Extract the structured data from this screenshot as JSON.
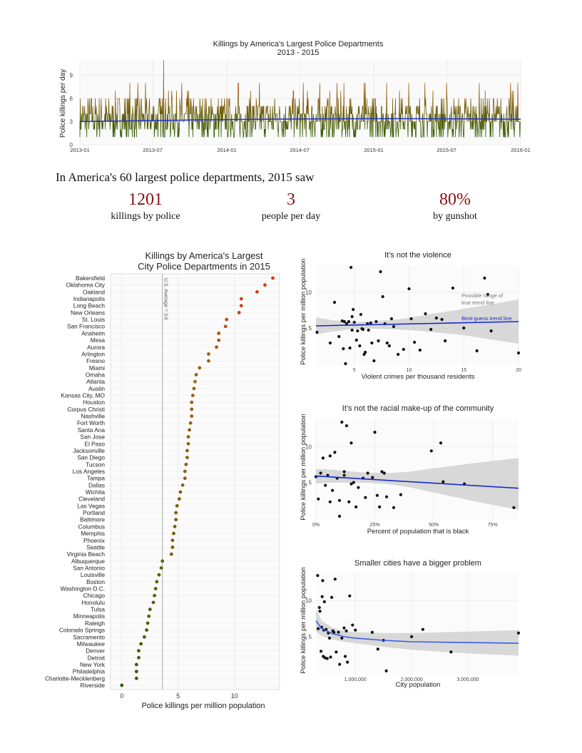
{
  "headline": "In America's 60 largest police departments, 2015 saw",
  "stats": [
    {
      "value": "1201",
      "label": "killings by police"
    },
    {
      "value": "3",
      "label": "people per day"
    },
    {
      "value": "80%",
      "label": "by gunshot"
    }
  ],
  "colors": {
    "trend": "#2233cc",
    "high": "#e8401c",
    "mid": "#a06010",
    "low": "#2a5a00",
    "band": "#cfcfcf",
    "ref_line": "#aaaaaa"
  },
  "chart_data": [
    {
      "type": "line",
      "title": "Killings by America's Largest Police Departments",
      "subtitle": "2013 - 2015",
      "ylabel": "Police killings per day",
      "xlabel": "",
      "x_ticks": [
        "2013-01",
        "2013-07",
        "2014-01",
        "2014-07",
        "2015-01",
        "2015-07",
        "2016-01"
      ],
      "y_ticks": [
        0,
        3,
        6,
        9
      ],
      "ylim": [
        0,
        11
      ],
      "xlim": [
        "2013-01-01",
        "2016-01-01"
      ],
      "grid": true,
      "series": [
        {
          "values_note": "",
          "peak_value": 11,
          "peak_date": "2013-07-28",
          "typical_range": [
            1,
            6
          ]
        }
      ],
      "trend": {
        "start": 3.0,
        "end": 3.3
      }
    },
    {
      "type": "scatter",
      "title": "Killings by America's Largest\nCity Police Departments in 2015",
      "xlabel": "Police killings per million population",
      "ylabel": "",
      "x_ticks": [
        0,
        5,
        10
      ],
      "xlim": [
        -1,
        14
      ],
      "reference_line": {
        "value": 3.6,
        "label": "U.S. Average = 3.6"
      },
      "categories": [
        "Bakersfield",
        "Oklahoma City",
        "Oakland",
        "Indianapolis",
        "Long Beach",
        "New Orleans",
        "St. Louis",
        "San Francisco",
        "Anaheim",
        "Mesa",
        "Aurora",
        "Arlington",
        "Fresno",
        "Miami",
        "Omaha",
        "Atlanta",
        "Austin",
        "Kansas City, MO",
        "Houston",
        "Corpus Christi",
        "Nashville",
        "Fort Worth",
        "Santa Ana",
        "San Jose",
        "El Paso",
        "Jacksonville",
        "San Diego",
        "Tucson",
        "Los Angeles",
        "Tampa",
        "Dallas",
        "Wichita",
        "Cleveland",
        "Las Vegas",
        "Portland",
        "Baltimore",
        "Columbus",
        "Memphis",
        "Phoenix",
        "Seattle",
        "Virginia Beach",
        "Albuquerque",
        "San Antonio",
        "Louisville",
        "Boston",
        "Washington D.C.",
        "Chicago",
        "Honolulu",
        "Tulsa",
        "Minneapolis",
        "Raleigh",
        "Colorado Springs",
        "Sacramento",
        "Milwaukee",
        "Denver",
        "Detroit",
        "New York",
        "Philadelphia",
        "Charlotte-Mecklenberg",
        "Riverside"
      ],
      "values": [
        13.4,
        12.7,
        12.0,
        10.6,
        10.6,
        10.4,
        9.3,
        9.2,
        8.6,
        8.6,
        8.4,
        7.7,
        7.7,
        6.9,
        6.6,
        6.5,
        6.4,
        6.3,
        6.2,
        6.2,
        6.2,
        6.1,
        6.0,
        5.9,
        5.9,
        5.8,
        5.8,
        5.7,
        5.6,
        5.6,
        5.4,
        5.2,
        5.1,
        4.9,
        4.8,
        4.8,
        4.7,
        4.6,
        4.5,
        4.5,
        4.4,
        3.6,
        3.5,
        3.3,
        3.1,
        3.0,
        2.9,
        2.8,
        2.5,
        2.4,
        2.3,
        2.2,
        2.0,
        1.7,
        1.5,
        1.5,
        1.3,
        1.3,
        1.3,
        0.0
      ]
    },
    {
      "type": "scatter",
      "title": "It's not the violence",
      "xlabel": "Violent crimes per thousand residents",
      "ylabel": "Police killings per million population",
      "x_ticks": [
        5,
        10,
        15,
        20
      ],
      "y_ticks": [
        5,
        10
      ],
      "xlim": [
        1.5,
        20
      ],
      "ylim": [
        -0.2,
        13.8
      ],
      "annotations": [
        "Possible range of true trend line",
        "Best-guess trend line"
      ],
      "trend": {
        "x": [
          1.5,
          20
        ],
        "y": [
          5.3,
          5.9
        ]
      },
      "band": {
        "x": [
          1.5,
          3,
          5,
          7,
          9,
          11,
          13,
          15,
          17,
          20
        ],
        "lo": [
          4.1,
          4.5,
          4.9,
          4.9,
          4.8,
          4.6,
          4.3,
          4.0,
          3.5,
          2.8
        ],
        "hi": [
          6.5,
          6.1,
          5.8,
          6.0,
          6.2,
          6.7,
          7.2,
          7.7,
          8.2,
          9.0
        ]
      },
      "x": [
        1.6,
        2.8,
        3.2,
        3.6,
        3.9,
        4.0,
        4.1,
        4.2,
        4.3,
        4.5,
        4.6,
        4.7,
        4.8,
        4.8,
        4.9,
        5.0,
        5.2,
        5.3,
        5.5,
        5.6,
        5.7,
        5.8,
        5.9,
        6.0,
        6.2,
        6.3,
        6.5,
        6.6,
        6.8,
        7.0,
        7.2,
        7.4,
        7.6,
        7.8,
        8.0,
        8.2,
        8.4,
        8.6,
        9.0,
        9.5,
        10.0,
        10.2,
        10.5,
        11.0,
        11.5,
        12.0,
        12.5,
        13.0,
        13.3,
        14.0,
        15.0,
        16.2,
        16.9,
        17.2,
        17.5,
        20.0
      ],
      "y": [
        4.4,
        2.9,
        8.6,
        3.8,
        6.0,
        2.1,
        5.9,
        0.0,
        5.6,
        5.9,
        2.2,
        13.5,
        6.6,
        4.7,
        7.6,
        5.8,
        3.3,
        4.6,
        2.5,
        6.9,
        4.9,
        4.8,
        1.3,
        1.6,
        5.6,
        4.7,
        5.7,
        2.9,
        0.4,
        5.9,
        3.2,
        12.9,
        9.4,
        5.6,
        2.9,
        2.5,
        6.3,
        5.2,
        1.3,
        2.0,
        10.5,
        6.3,
        3.0,
        1.9,
        7.0,
        4.8,
        6.4,
        6.2,
        3.2,
        10.6,
        5.0,
        1.8,
        12.0,
        9.7,
        4.6,
        1.5
      ]
    },
    {
      "type": "scatter",
      "title": "It's not the racial make-up of the community",
      "xlabel": "Percent of population that is black",
      "ylabel": "Police killings per million population",
      "x_ticks": [
        "0%",
        "25%",
        "50%",
        "75%"
      ],
      "y_ticks": [
        5,
        10
      ],
      "xlim": [
        0,
        0.86
      ],
      "ylim": [
        -0.2,
        13.8
      ],
      "trend": {
        "x": [
          0,
          0.86
        ],
        "y": [
          5.9,
          4.2
        ]
      },
      "band": {
        "x": [
          0,
          0.1,
          0.2,
          0.3,
          0.4,
          0.5,
          0.6,
          0.7,
          0.86
        ],
        "lo": [
          4.9,
          5.0,
          5.0,
          4.8,
          4.3,
          3.6,
          2.9,
          2.2,
          1.2
        ],
        "hi": [
          6.9,
          6.7,
          6.4,
          6.3,
          6.5,
          7.0,
          7.4,
          7.8,
          8.4
        ]
      },
      "x": [
        0.0,
        0.01,
        0.02,
        0.03,
        0.04,
        0.05,
        0.06,
        0.06,
        0.07,
        0.08,
        0.09,
        0.1,
        0.1,
        0.11,
        0.12,
        0.12,
        0.13,
        0.14,
        0.15,
        0.15,
        0.16,
        0.17,
        0.18,
        0.2,
        0.21,
        0.22,
        0.24,
        0.25,
        0.26,
        0.27,
        0.28,
        0.29,
        0.3,
        0.33,
        0.36,
        0.49,
        0.53,
        0.54,
        0.63,
        0.84
      ],
      "y": [
        5.8,
        2.7,
        6.3,
        8.4,
        4.6,
        6.0,
        2.3,
        8.7,
        3.9,
        9.2,
        5.6,
        0.3,
        2.5,
        13.4,
        6.0,
        6.5,
        12.9,
        2.3,
        4.8,
        10.5,
        5.0,
        1.6,
        4.3,
        5.6,
        2.9,
        6.3,
        5.7,
        12.0,
        3.2,
        1.6,
        6.5,
        6.3,
        3.0,
        1.5,
        3.3,
        9.4,
        10.5,
        5.1,
        4.8,
        1.5
      ]
    },
    {
      "type": "scatter",
      "title": "Smaller cities have a bigger problem",
      "xlabel": "City population",
      "ylabel": "Police killings per million population",
      "x_ticks": [
        "1,000,000",
        "2,000,000",
        "3,000,000"
      ],
      "y_ticks": [
        5,
        10
      ],
      "xlim": [
        300000,
        3900000
      ],
      "ylim": [
        -0.2,
        13.8
      ],
      "trend": {
        "x": [
          300000,
          400000,
          600000,
          800000,
          1000000,
          1500000,
          2000000,
          3000000,
          3900000
        ],
        "y": [
          7.2,
          6.1,
          5.4,
          5.0,
          4.8,
          4.5,
          4.3,
          4.2,
          4.1
        ]
      },
      "band": {
        "x": [
          300000,
          400000,
          600000,
          800000,
          1000000,
          1500000,
          2000000,
          3000000,
          3900000
        ],
        "lo": [
          5.7,
          5.1,
          4.6,
          4.3,
          4.1,
          3.6,
          3.2,
          2.7,
          2.4
        ],
        "hi": [
          8.8,
          7.2,
          6.2,
          5.8,
          5.6,
          5.5,
          5.5,
          5.7,
          5.9
        ]
      },
      "x": [
        330000,
        340000,
        360000,
        370000,
        390000,
        400000,
        410000,
        420000,
        430000,
        440000,
        450000,
        460000,
        480000,
        500000,
        520000,
        540000,
        560000,
        580000,
        600000,
        620000,
        640000,
        660000,
        700000,
        720000,
        760000,
        800000,
        820000,
        840000,
        860000,
        900000,
        950000,
        1000000,
        1300000,
        1400000,
        1500000,
        1550000,
        2000000,
        2200000,
        2700000,
        3900000
      ],
      "y": [
        13.4,
        6.1,
        9.0,
        8.5,
        3.0,
        6.3,
        10.5,
        12.7,
        2.3,
        5.9,
        9.8,
        2.1,
        6.0,
        2.0,
        5.5,
        4.8,
        2.2,
        10.4,
        5.8,
        5.6,
        12.9,
        2.9,
        5.6,
        1.2,
        4.8,
        6.2,
        2.3,
        5.8,
        1.5,
        10.6,
        6.6,
        5.9,
        5.6,
        3.3,
        4.5,
        0.3,
        5.0,
        6.0,
        2.9,
        5.5
      ]
    }
  ]
}
